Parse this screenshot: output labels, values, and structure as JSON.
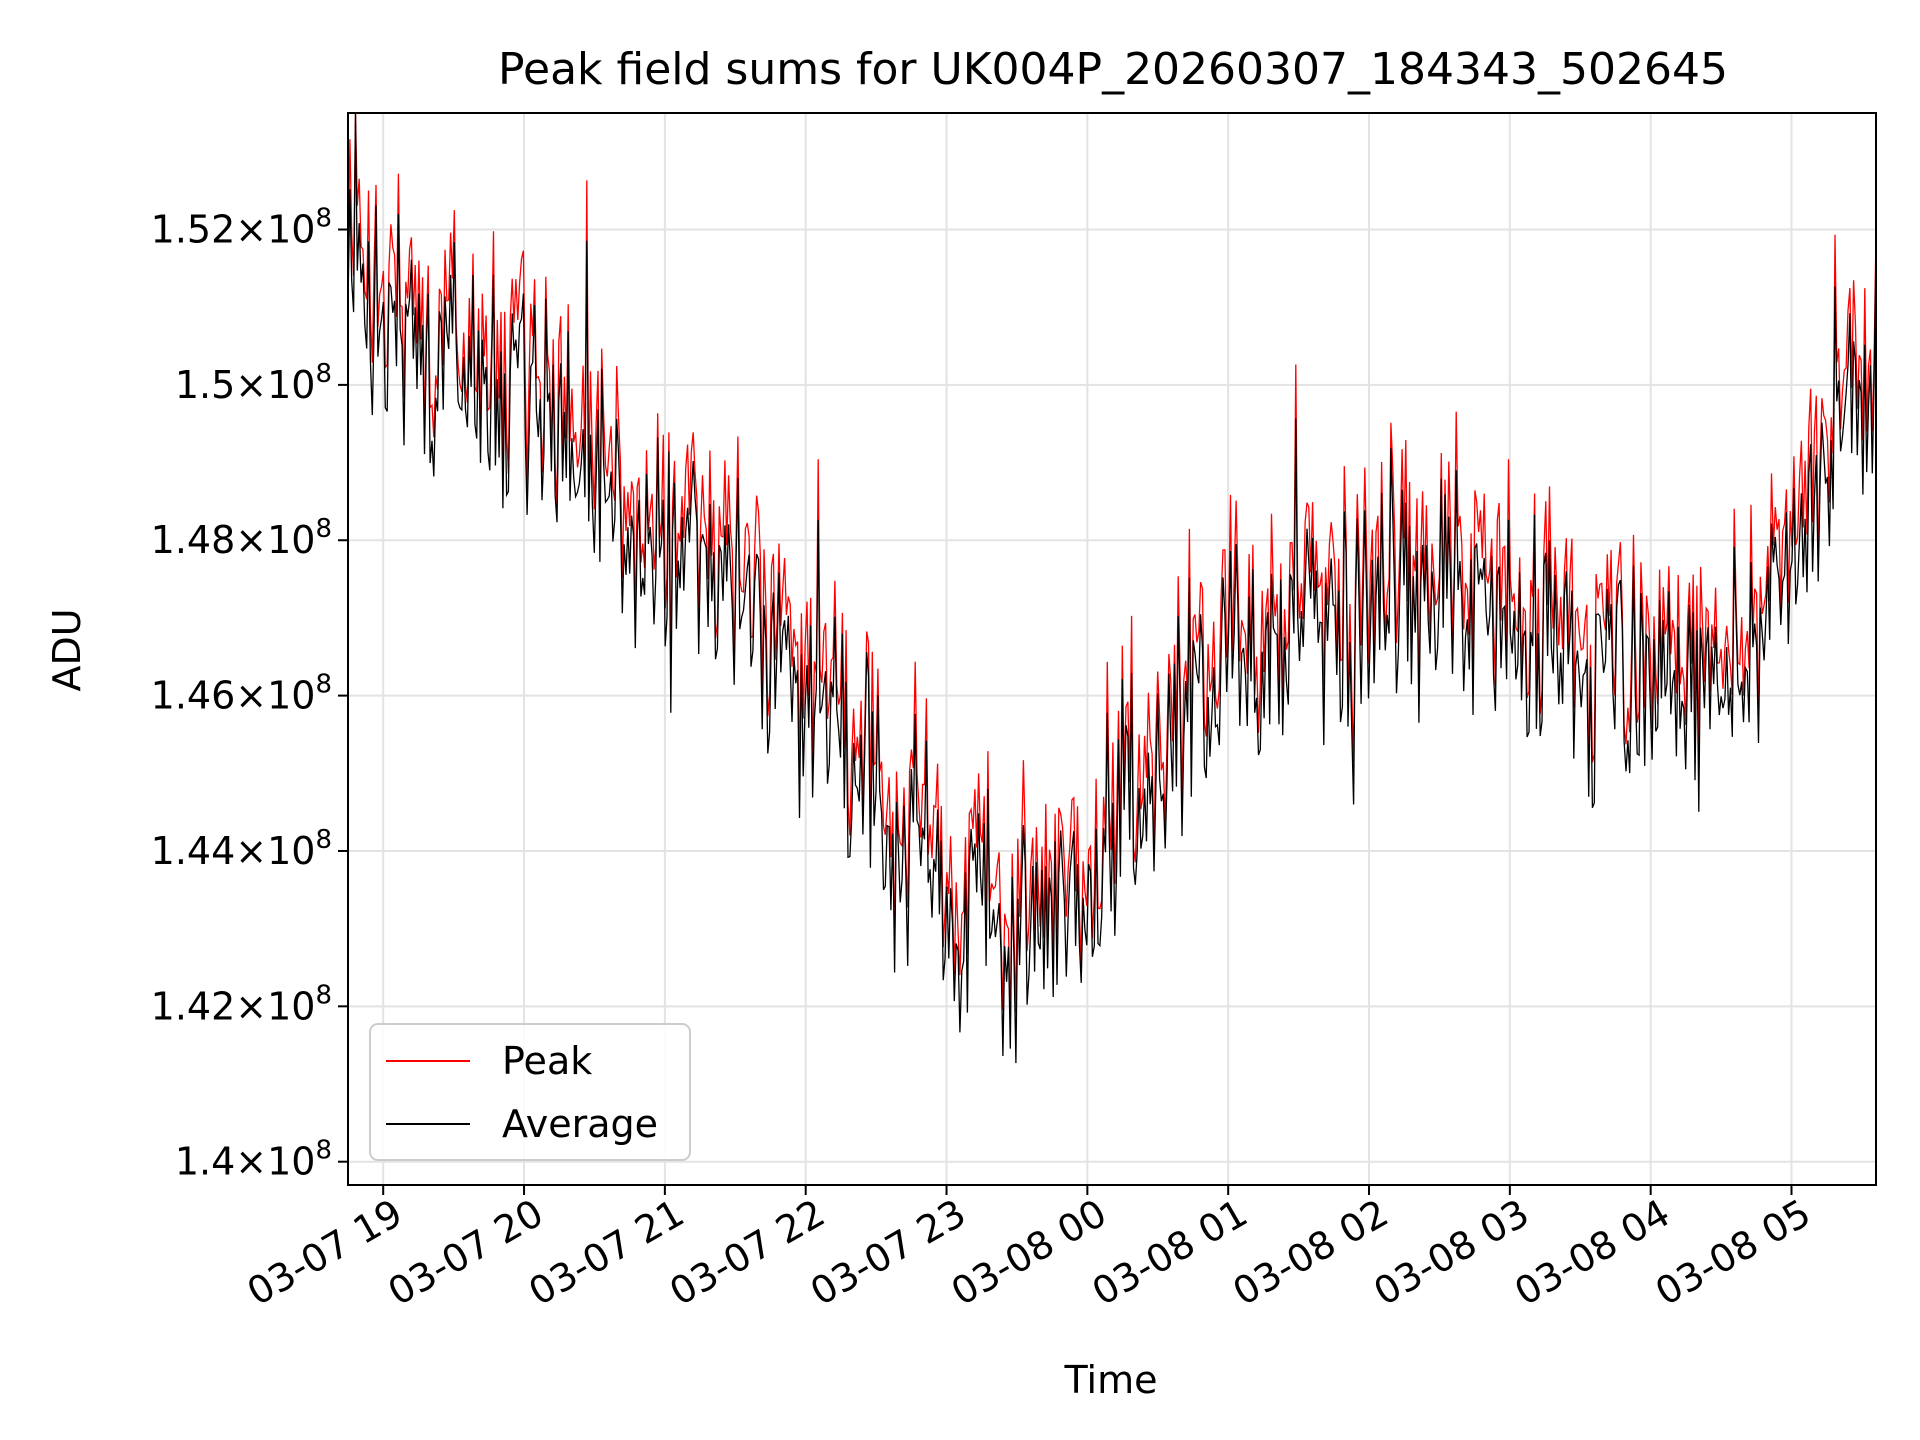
{
  "chart_data": {
    "type": "line",
    "title": "Peak field sums for UK004P_20260307_184343_502645",
    "xlabel": "Time",
    "ylabel": "ADU",
    "x_range_hours": [
      -0.25,
      10.6
    ],
    "ylim": [
      139700000,
      153500000
    ],
    "grid": true,
    "legend_placement": "lower-left",
    "x_ticks": [
      {
        "h": 0,
        "label": "03-07 19"
      },
      {
        "h": 1,
        "label": "03-07 20"
      },
      {
        "h": 2,
        "label": "03-07 21"
      },
      {
        "h": 3,
        "label": "03-07 22"
      },
      {
        "h": 4,
        "label": "03-07 23"
      },
      {
        "h": 5,
        "label": "03-08 00"
      },
      {
        "h": 6,
        "label": "03-08 01"
      },
      {
        "h": 7,
        "label": "03-08 02"
      },
      {
        "h": 8,
        "label": "03-08 03"
      },
      {
        "h": 9,
        "label": "03-08 04"
      },
      {
        "h": 10,
        "label": "03-08 05"
      }
    ],
    "y_ticks": [
      {
        "v": 140000000,
        "mant": "1.4",
        "exp": "8"
      },
      {
        "v": 142000000,
        "mant": "1.42",
        "exp": "8"
      },
      {
        "v": 144000000,
        "mant": "1.44",
        "exp": "8"
      },
      {
        "v": 146000000,
        "mant": "1.46",
        "exp": "8"
      },
      {
        "v": 148000000,
        "mant": "1.48",
        "exp": "8"
      },
      {
        "v": 150000000,
        "mant": "1.5",
        "exp": "8"
      },
      {
        "v": 152000000,
        "mant": "1.52",
        "exp": "8"
      }
    ],
    "times_label": "x in hours after 03-07 19:00",
    "trend_h": [
      -0.25,
      0.0,
      0.5,
      1.0,
      1.5,
      2.0,
      2.5,
      3.0,
      3.5,
      4.0,
      4.5,
      5.0,
      5.5,
      6.0,
      6.5,
      7.0,
      7.5,
      8.0,
      8.5,
      9.0,
      9.5,
      10.0,
      10.3,
      10.6
    ],
    "trend_mean": [
      151500000,
      150800000,
      150400000,
      149800000,
      148800000,
      147700000,
      147200000,
      146300000,
      144800000,
      143400000,
      142800000,
      143600000,
      145000000,
      146500000,
      147100000,
      147400000,
      147300000,
      146900000,
      146500000,
      146300000,
      146400000,
      147200000,
      149200000,
      150200000
    ],
    "peak_excess_mean": 600000,
    "noise_amplitude": 1100000,
    "sample_count": 820,
    "series": [
      {
        "name": "Peak",
        "color": "#ff0000",
        "label": "Peak"
      },
      {
        "name": "Average",
        "color": "#000000",
        "label": "Average"
      }
    ]
  }
}
